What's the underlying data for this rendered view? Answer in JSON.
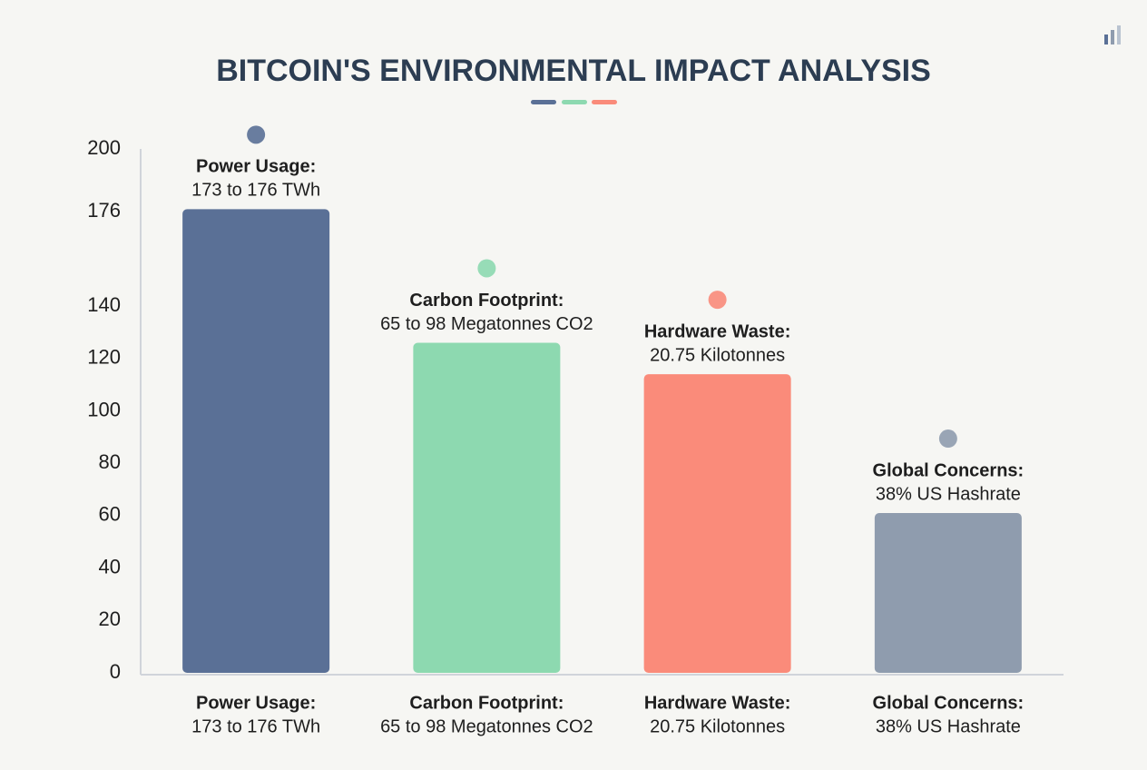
{
  "chart_data": {
    "type": "bar",
    "title": "BITCOIN'S ENVIRONMENTAL IMPACT ANALYSIS",
    "categories": [
      "Power Usage:",
      "Carbon Footprint:",
      "Hardware Waste:",
      "Global Concerns:"
    ],
    "descriptions": [
      "173 to 176 TWh",
      "65 to 98 Megatonnes CO2",
      "20.75 Kilotonnes",
      "38% US Hashrate"
    ],
    "values": [
      177,
      126,
      114,
      61
    ],
    "colors": [
      "#5a7096",
      "#8dd9b0",
      "#fa8b7a",
      "#8f9cae"
    ],
    "ylim": [
      0,
      200
    ],
    "yticks": [
      0,
      20,
      40,
      60,
      80,
      100,
      120,
      140,
      176,
      200
    ],
    "grid": false
  }
}
